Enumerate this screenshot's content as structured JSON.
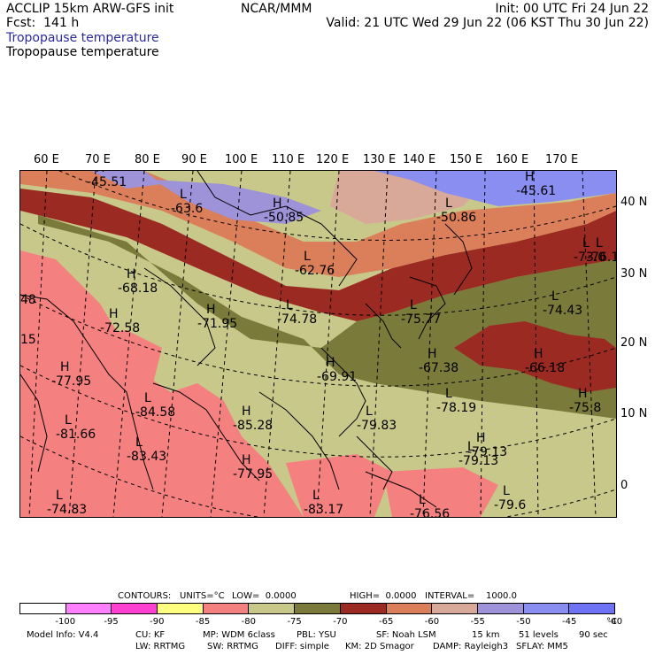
{
  "header": {
    "left1": "ACCLIP 15km ARW-GFS init",
    "left2": "Fcst:  141 h",
    "center": "NCAR/MMM",
    "right1": "Init: 00 UTC Fri 24 Jun 22",
    "right2": "Valid: 21 UTC Wed 29 Jun 22 (06 KST Thu 30 Jun 22)",
    "field_title_blue": "Tropopause temperature",
    "field_title": "Tropopause temperature"
  },
  "map": {
    "lon_labels": [
      "60 E",
      "70 E",
      "80 E",
      "90 E",
      "100 E",
      "110 E",
      "120 E",
      "130 E",
      "140 E",
      "150 E",
      "160 E",
      "170 E"
    ],
    "lat_labels": [
      "40 N",
      "30 N",
      "20 N",
      "10 N",
      "0"
    ],
    "colors": {
      "c_m85_80": "#f58080",
      "c_m80_75": "#c8c88a",
      "c_m75_70": "#7a7a3a",
      "c_m70_65": "#9b2a22",
      "c_m65_60": "#db7f5a",
      "c_m60_55": "#d8a898",
      "c_m55_50": "#9e92d8",
      "c_m50_45": "#8a8ef0",
      "ocean": "#c8c88a"
    },
    "highs": [
      {
        "label": "-45.51"
      },
      {
        "label": "-50.85"
      },
      {
        "label": "-45.61"
      },
      {
        "label": "-72.58"
      },
      {
        "label": "-71.95"
      },
      {
        "label": "-77.95"
      },
      {
        "label": "-85.28"
      },
      {
        "label": "-77.95"
      },
      {
        "label": "-79.13"
      },
      {
        "label": "-69.91"
      },
      {
        "label": "-67.38"
      },
      {
        "label": "-75.8"
      },
      {
        "label": "-66.18"
      },
      {
        "label": "-68.18"
      }
    ],
    "lows": [
      {
        "label": "-63.6"
      },
      {
        "label": "-50.86"
      },
      {
        "label": "-62.76"
      },
      {
        "label": "-73.0"
      },
      {
        "label": "-74.78"
      },
      {
        "label": "-75.77"
      },
      {
        "label": "-74.43"
      },
      {
        "label": "-84.58"
      },
      {
        "label": "-81.66"
      },
      {
        "label": "-83.43"
      },
      {
        "label": "-78.19"
      },
      {
        "label": "-79.83"
      },
      {
        "label": "-79.6"
      },
      {
        "label": "-74.83"
      },
      {
        "label": "-83.17"
      },
      {
        "label": "-76.56"
      },
      {
        "label": "-76.1"
      },
      {
        "label": "-79.13"
      }
    ],
    "edge_labels": [
      "48",
      "15"
    ]
  },
  "legend": {
    "contours": "CONTOURS:",
    "units": "UNITS=°C",
    "low": "LOW=  0.0000",
    "high": "HIGH=  0.0000",
    "interval": "INTERVAL=    1000.0",
    "swatches": [
      "#ffffff",
      "#ff80ff",
      "#ff40d0",
      "#ffff80",
      "#f58080",
      "#c8c88a",
      "#7a7a3a",
      "#9b2a22",
      "#db7f5a",
      "#d8a898",
      "#9e92d8",
      "#8a8ef0",
      "#6e72f5"
    ],
    "ticks": [
      "-100",
      "-95",
      "-90",
      "-85",
      "-80",
      "-75",
      "-70",
      "-65",
      "-60",
      "-55",
      "-50",
      "-45",
      "-40",
      "°C"
    ]
  },
  "footer": {
    "line1_a": "Model Info: V4.4",
    "line1_b": "CU: KF",
    "line1_c": "MP: WDM 6class",
    "line1_d": "PBL: YSU",
    "line1_e": "SF: Noah LSM",
    "line1_f": "15 km",
    "line1_g": "51 levels",
    "line1_h": "90 sec",
    "line2_a": "LW: RRTMG",
    "line2_b": "SW: RRTMG",
    "line2_c": "DIFF: simple",
    "line2_d": "KM: 2D Smagor",
    "line2_e": "DAMP: Rayleigh3",
    "line2_f": "SFLAY: MM5"
  }
}
